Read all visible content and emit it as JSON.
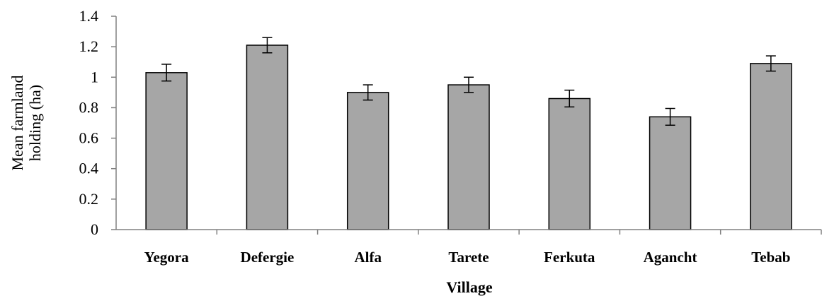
{
  "chart_data": {
    "type": "bar",
    "categories": [
      "Yegora",
      "Defergie",
      "Alfa",
      "Tarete",
      "Ferkuta",
      "Agancht",
      "Tebab"
    ],
    "values": [
      1.03,
      1.21,
      0.9,
      0.95,
      0.86,
      0.74,
      1.09
    ],
    "error": [
      0.055,
      0.05,
      0.05,
      0.05,
      0.055,
      0.055,
      0.05
    ],
    "title": "",
    "xlabel": "Village",
    "ylabel": "Mean farmland holding (ha)",
    "ylabel_lines": [
      "Mean farmland",
      "holding (ha)"
    ],
    "ylim": [
      0,
      1.4
    ],
    "yticks": [
      "0",
      "0.2",
      "0.4",
      "0.6",
      "0.8",
      "1",
      "1.2",
      "1.4"
    ],
    "grid": false,
    "legend": "none",
    "colors": {
      "bar_fill": "#a6a6a6",
      "bar_stroke": "#000000",
      "axis": "#808080"
    }
  }
}
